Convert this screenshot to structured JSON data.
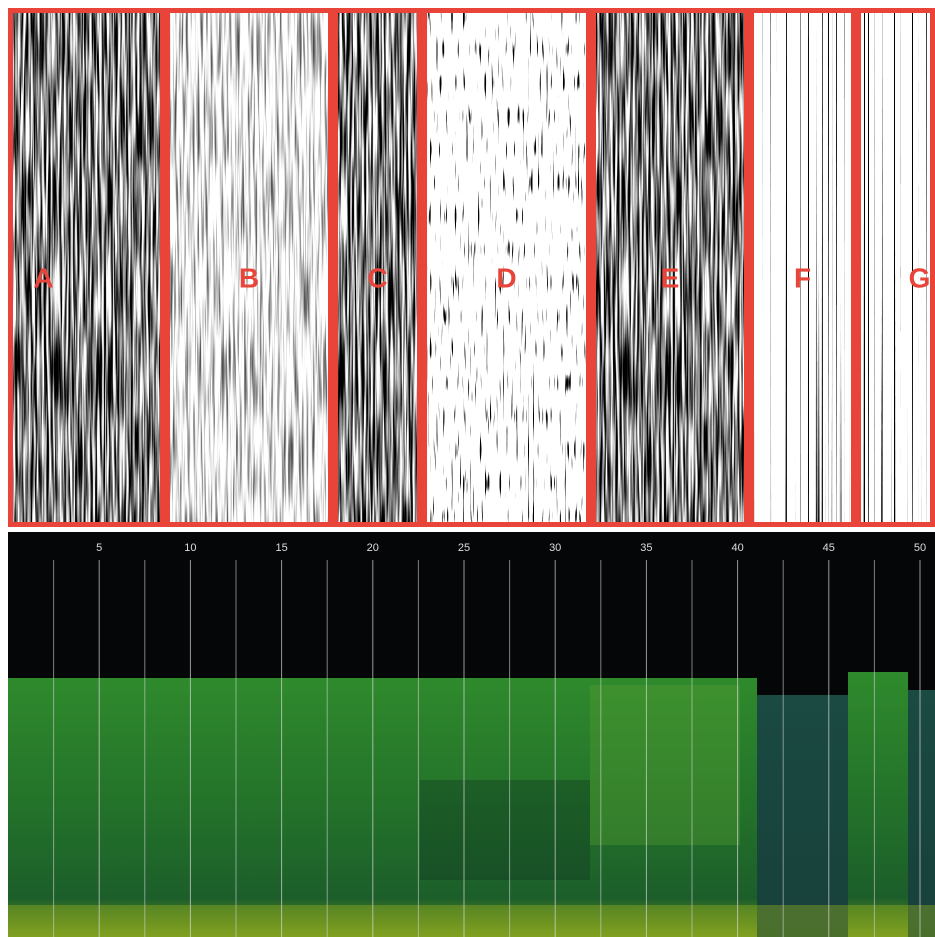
{
  "panels": [
    {
      "label": "A"
    },
    {
      "label": "B"
    },
    {
      "label": "C"
    },
    {
      "label": "D"
    },
    {
      "label": "E"
    },
    {
      "label": "F"
    },
    {
      "label": "G"
    }
  ],
  "axis": {
    "ticks": [
      5,
      10,
      15,
      20,
      25,
      30,
      35,
      40,
      45,
      50
    ]
  }
}
